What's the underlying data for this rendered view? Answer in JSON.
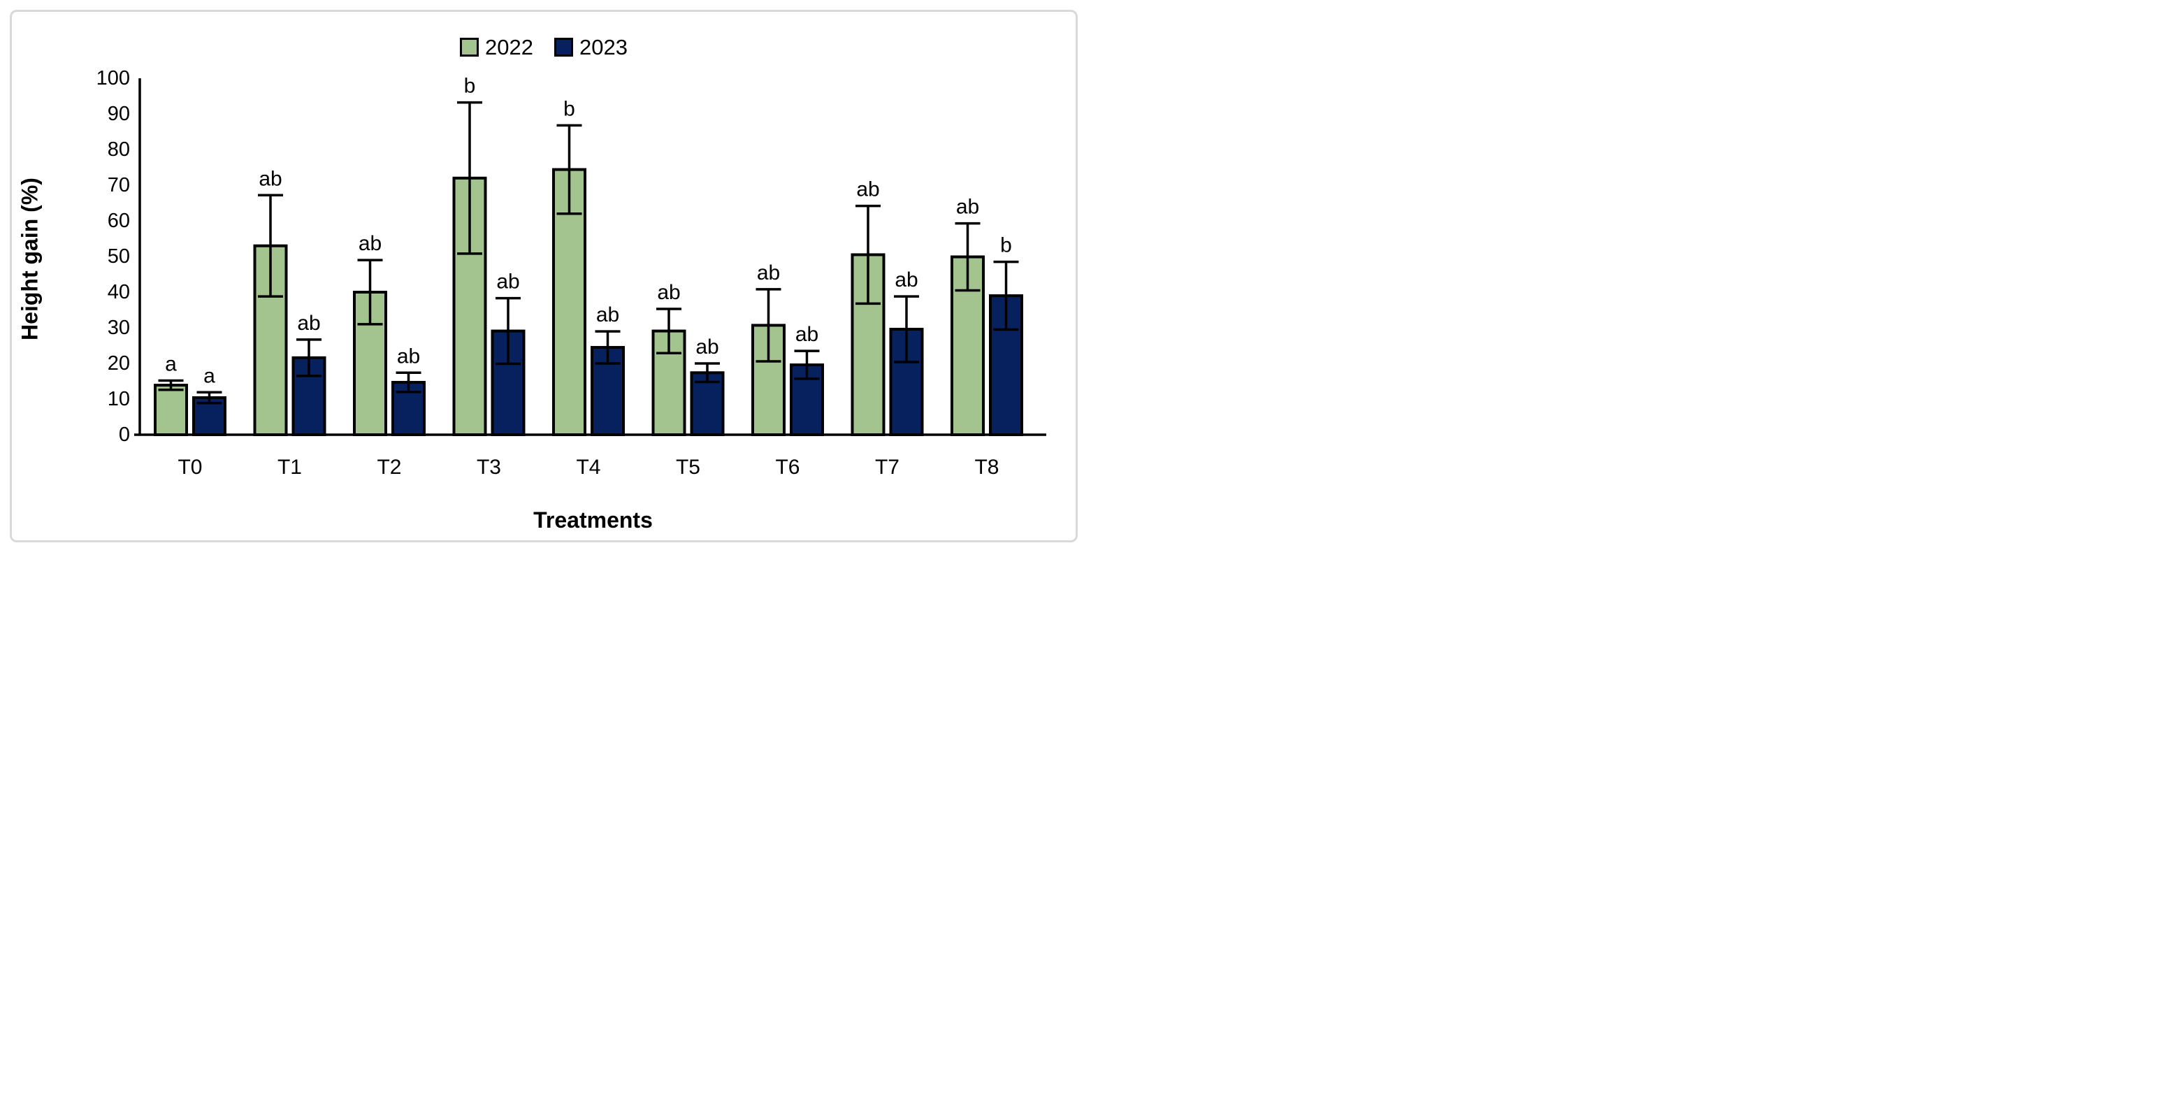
{
  "chart_data": {
    "type": "bar",
    "title": "",
    "categories": [
      "T0",
      "T1",
      "T2",
      "T3",
      "T4",
      "T5",
      "T6",
      "T7",
      "T8"
    ],
    "series": [
      {
        "name": "2022",
        "color": "#A3C48E",
        "values": [
          13.9,
          53.0,
          40.0,
          72.0,
          74.4,
          29.1,
          30.7,
          50.5,
          49.9
        ],
        "errors": [
          1.3,
          14.2,
          9.0,
          21.2,
          12.4,
          6.2,
          10.1,
          13.7,
          9.4
        ],
        "sig_letters": [
          "a",
          "ab",
          "ab",
          "b",
          "b",
          "ab",
          "ab",
          "ab",
          "ab"
        ]
      },
      {
        "name": "2023",
        "color": "#07215E",
        "values": [
          10.4,
          21.6,
          14.7,
          29.1,
          24.5,
          17.4,
          19.6,
          29.6,
          39.0
        ],
        "errors": [
          1.5,
          5.1,
          2.7,
          9.2,
          4.5,
          2.6,
          3.9,
          9.2,
          9.5
        ],
        "sig_letters": [
          "a",
          "ab",
          "ab",
          "ab",
          "ab",
          "ab",
          "ab",
          "ab",
          "b"
        ]
      }
    ],
    "xlabel": "Treatments",
    "ylabel": "Height gain (%)",
    "ylim": [
      0,
      100
    ],
    "yticks": [
      0,
      10,
      20,
      30,
      40,
      50,
      60,
      70,
      80,
      90,
      100
    ],
    "grid": false,
    "legend_position": "top-center",
    "bar_border_color": "#000000",
    "error_bar_color": "#000000",
    "axis_color": "#000000",
    "frame_border_color": "#d9d9d9",
    "background_color": "#ffffff"
  }
}
